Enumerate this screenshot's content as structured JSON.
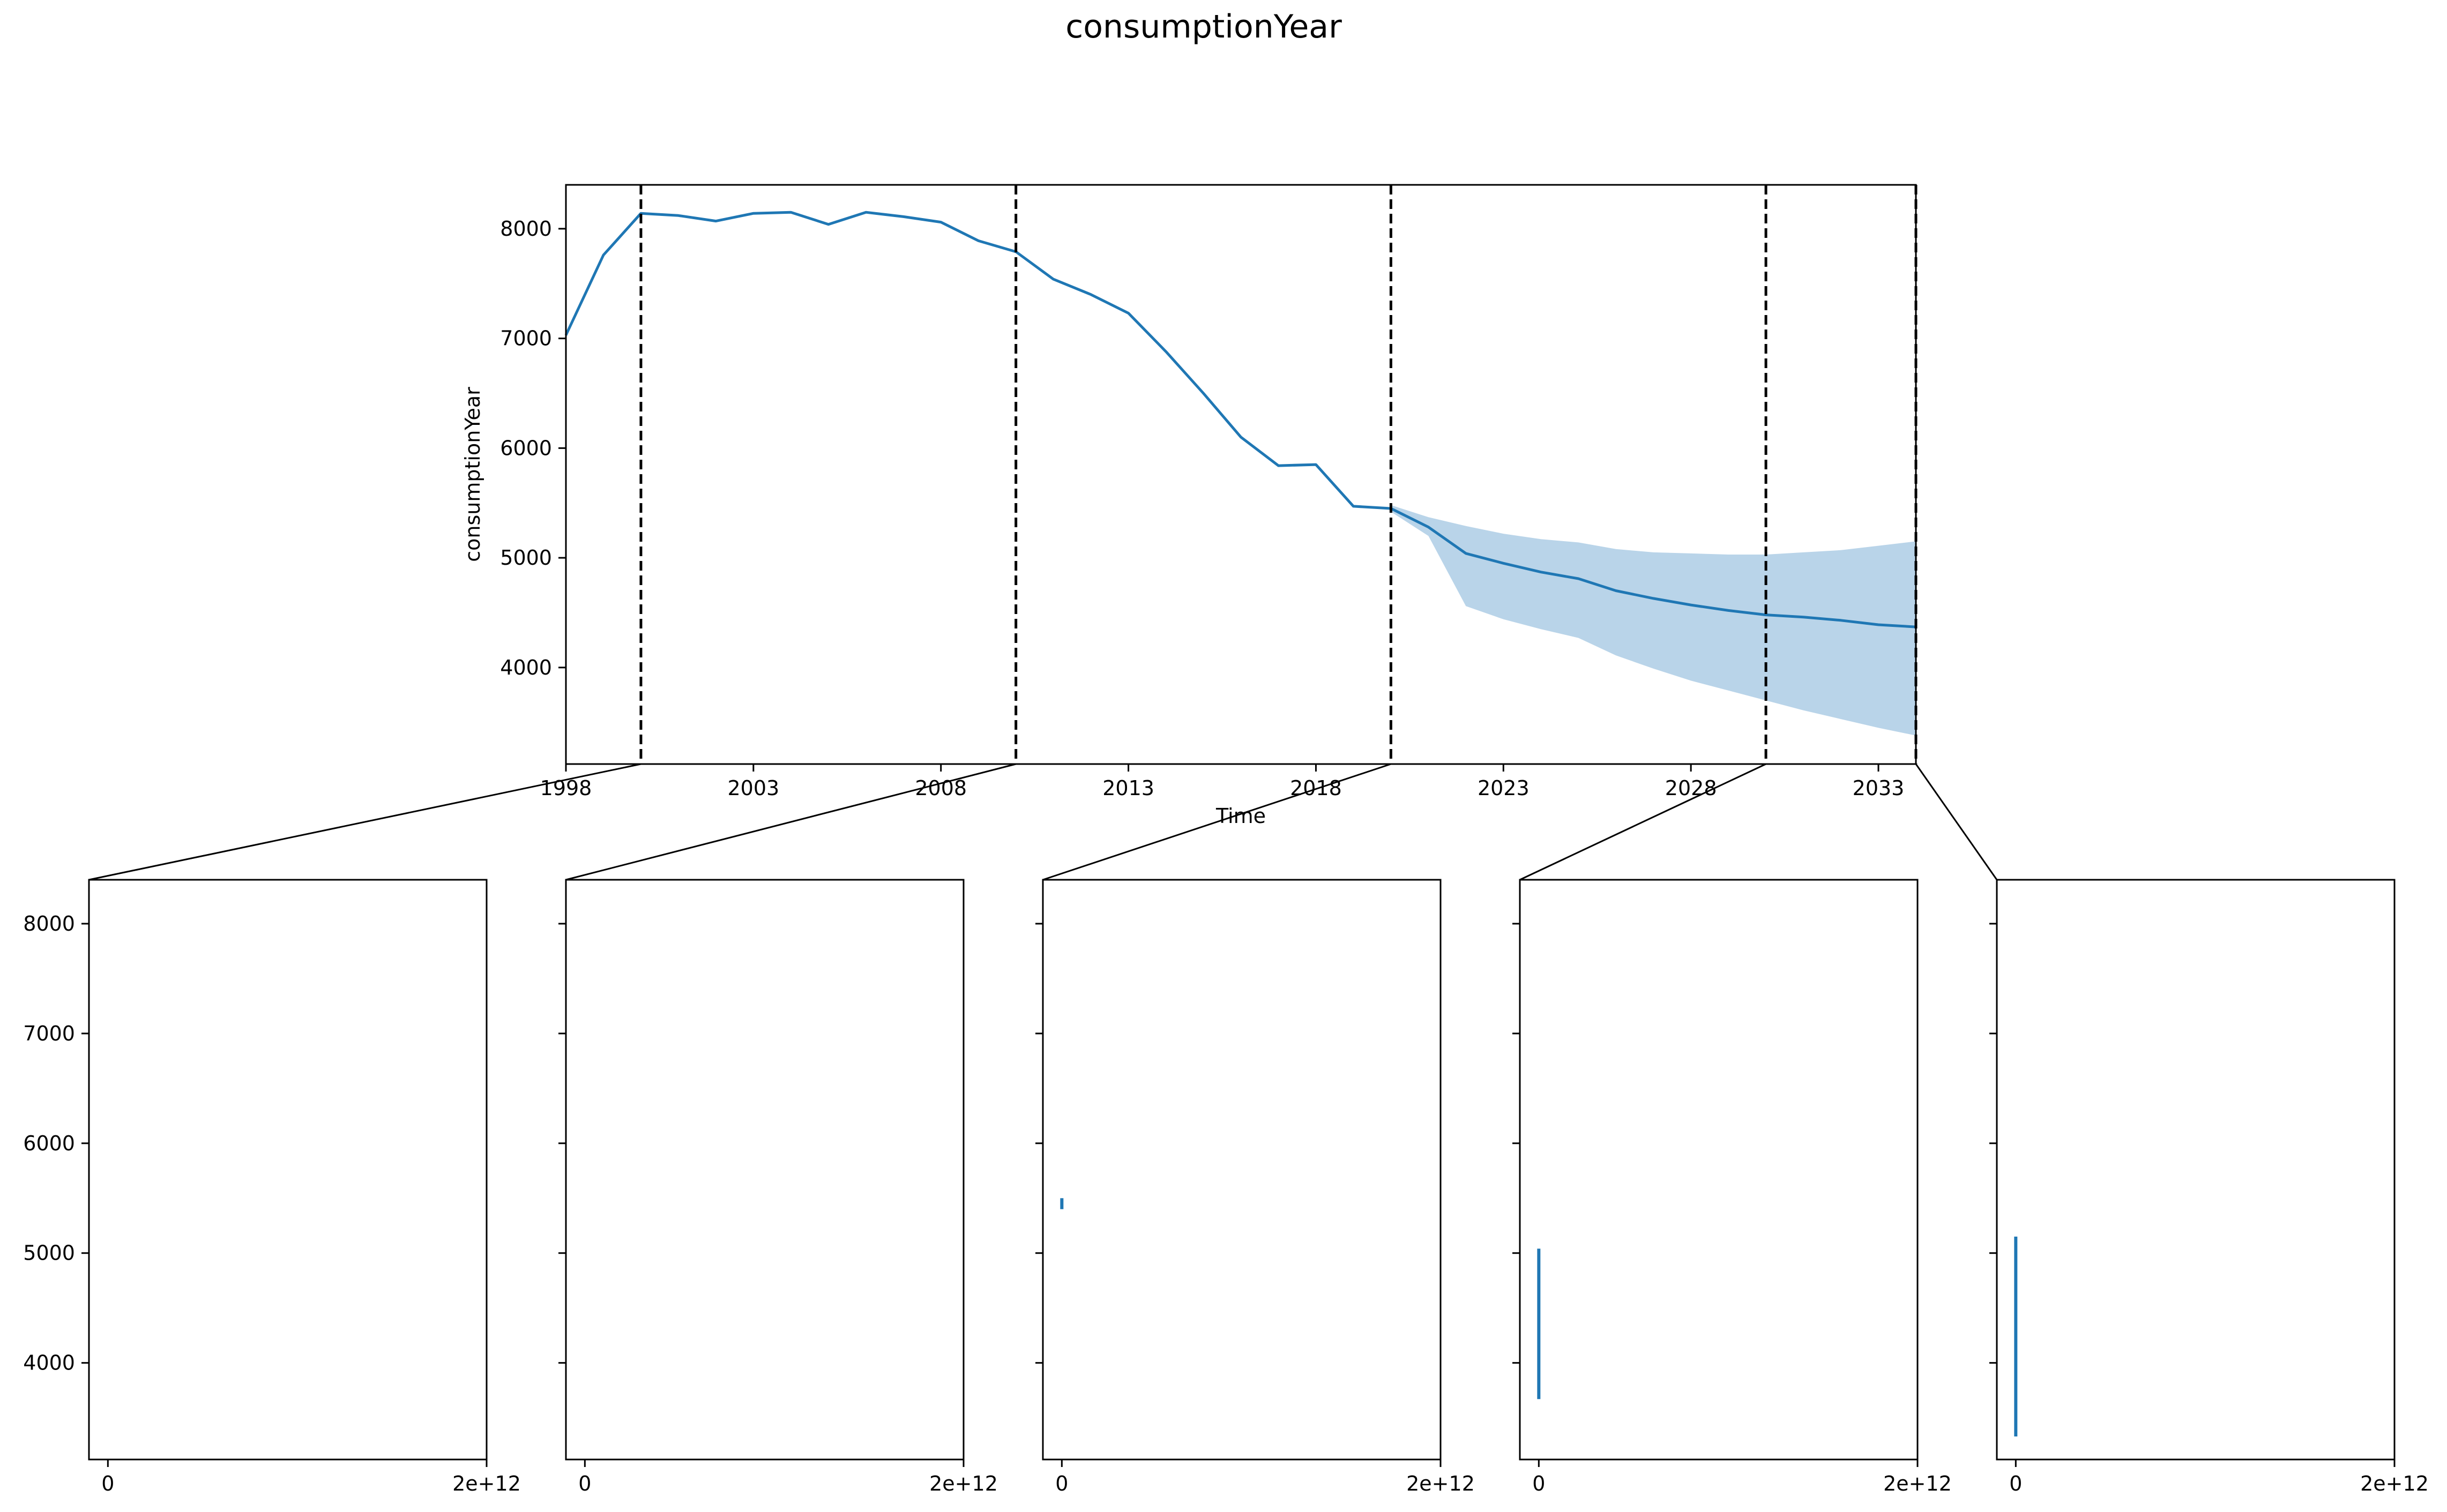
{
  "chart_data": [
    {
      "type": "line",
      "title": "consumptionYear",
      "xlabel": "Time",
      "ylabel": "consumptionYear",
      "xlim": [
        1998,
        2034
      ],
      "ylim": [
        3120,
        8400
      ],
      "xticks": [
        1998,
        2003,
        2008,
        2013,
        2018,
        2023,
        2028,
        2033
      ],
      "yticks": [
        4000,
        5000,
        6000,
        7000,
        8000
      ],
      "line_color": "#1f77b4",
      "band_color": "#b9d4e9",
      "grid": false,
      "legend": "none",
      "series": [
        {
          "x": [
            1998,
            1999,
            2000,
            2001,
            2002,
            2003,
            2004,
            2005,
            2006,
            2007,
            2008,
            2009,
            2010,
            2011,
            2012,
            2013,
            2014,
            2015,
            2016,
            2017,
            2018,
            2019,
            2020
          ],
          "values": [
            7030,
            7760,
            8140,
            8120,
            8070,
            8140,
            8150,
            8040,
            8150,
            8110,
            8060,
            7890,
            7790,
            7540,
            7400,
            7230,
            6880,
            6500,
            6100,
            5840,
            5850,
            5470,
            5450
          ]
        },
        {
          "x": [
            2020,
            2021,
            2022,
            2023,
            2024,
            2025,
            2026,
            2027,
            2028,
            2029,
            2030,
            2031,
            2032,
            2033,
            2034
          ],
          "values": [
            5450,
            5280,
            5040,
            4950,
            4870,
            4810,
            4700,
            4630,
            4570,
            4520,
            4480,
            4460,
            4430,
            4390,
            4370
          ],
          "lower": [
            5420,
            5200,
            4560,
            4440,
            4350,
            4270,
            4110,
            3990,
            3880,
            3790,
            3700,
            3610,
            3530,
            3450,
            3380
          ],
          "upper": [
            5480,
            5370,
            5290,
            5220,
            5170,
            5140,
            5080,
            5050,
            5040,
            5030,
            5030,
            5050,
            5070,
            5110,
            5150
          ]
        }
      ],
      "segment_boundaries": [
        2000,
        2010,
        2020,
        2030,
        2034
      ]
    },
    {
      "type": "line",
      "ylim": [
        3120,
        8400
      ],
      "xlim": [
        -100000000000.0,
        2000000000000.0
      ],
      "xticks": [
        "0",
        "2e+12"
      ],
      "yticks": [
        4000,
        5000,
        6000,
        7000,
        8000
      ],
      "segments": [
        {
          "x": 0,
          "y_min": null,
          "y_max": null
        },
        {
          "x": 0,
          "y_min": null,
          "y_max": null
        },
        {
          "x": 0,
          "y_min": 5400,
          "y_max": 5500
        },
        {
          "x": 0,
          "y_min": 3670,
          "y_max": 5040
        },
        {
          "x": 0,
          "y_min": 3330,
          "y_max": 5150
        }
      ]
    }
  ]
}
